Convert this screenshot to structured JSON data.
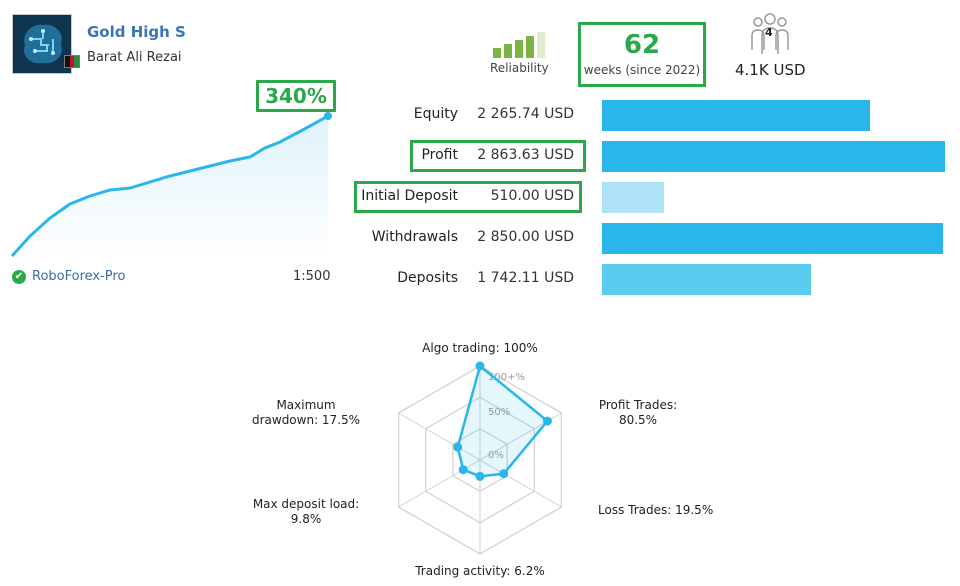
{
  "signal": {
    "title": "Gold High S",
    "author": "Barat Ali Rezai",
    "gain": "340%",
    "broker": "RoboForex-Pro",
    "leverage": "1:500"
  },
  "reliability": {
    "label": "Reliability",
    "level": 0.8
  },
  "weeks": {
    "value": "62",
    "label": "weeks (since 2022)"
  },
  "subscribers": {
    "count": "4",
    "funds": "4.1K USD"
  },
  "stats": [
    {
      "label": "Equity",
      "value": "2 265.74 USD",
      "fraction": 0.78,
      "color": "#29b6ea"
    },
    {
      "label": "Profit",
      "value": "2 863.63 USD",
      "fraction": 1.0,
      "color": "#29b6ea"
    },
    {
      "label": "Initial Deposit",
      "value": "510.00 USD",
      "fraction": 0.18,
      "color": "#aee3f7"
    },
    {
      "label": "Withdrawals",
      "value": "2 850.00 USD",
      "fraction": 0.995,
      "color": "#29b6ea"
    },
    {
      "label": "Deposits",
      "value": "1 742.11 USD",
      "fraction": 0.61,
      "color": "#5ccbf0"
    }
  ],
  "radar": {
    "ring_labels": [
      "100+%",
      "50%",
      "0%"
    ],
    "axes": [
      {
        "label": "Algo trading: 100%",
        "value": 100
      },
      {
        "label": "Profit Trades: 80.5%",
        "value": 80.5
      },
      {
        "label": "Loss Trades: 19.5%",
        "value": 19.5
      },
      {
        "label": "Trading activity: 6.2%",
        "value": 6.2
      },
      {
        "label": "Max deposit load: 9.8%",
        "value": 9.8
      },
      {
        "label": "Maximum drawdown: 17.5%",
        "value": 17.5
      }
    ]
  },
  "colors": {
    "accent": "#29b6ea",
    "highlight": "#2aa84a",
    "link": "#3a74b6"
  }
}
